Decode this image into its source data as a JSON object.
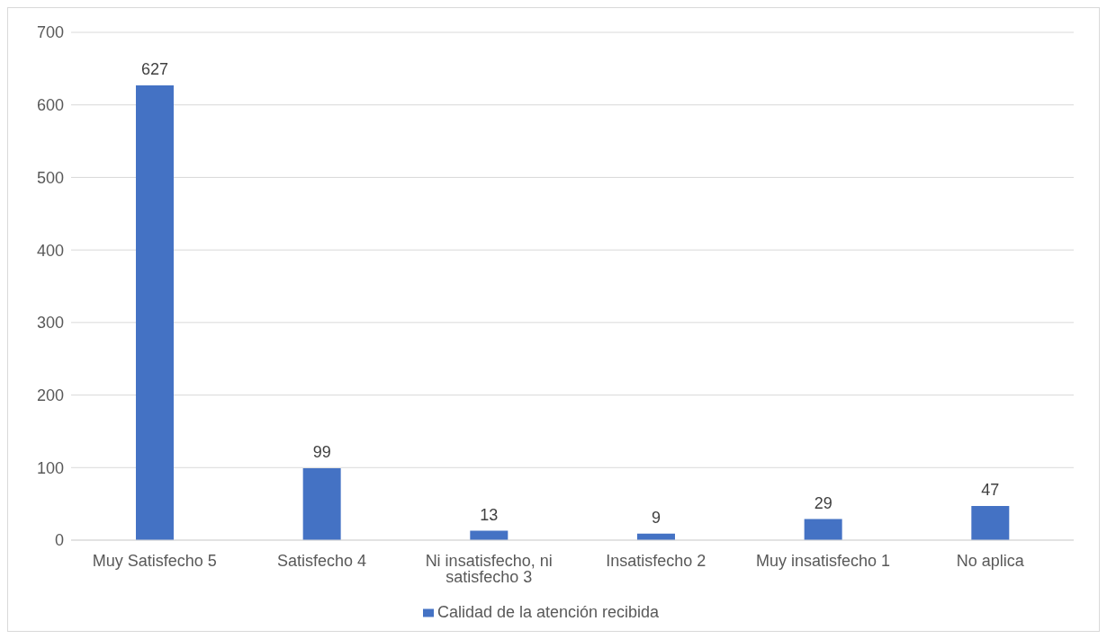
{
  "chart_data": {
    "type": "bar",
    "categories": [
      "Muy Satisfecho 5",
      "Satisfecho 4",
      "Ni insatisfecho, ni satisfecho 3",
      "Insatisfecho 2",
      "Muy insatisfecho 1",
      "No aplica"
    ],
    "series": [
      {
        "name": "Calidad de la atención recibida",
        "color": "#4472c4",
        "values": [
          627,
          99,
          13,
          9,
          29,
          47
        ]
      }
    ],
    "ylim": [
      0,
      700
    ],
    "yticks": [
      0,
      100,
      200,
      300,
      400,
      500,
      600,
      700
    ],
    "grid": "y",
    "legend": "bottom",
    "data_labels": true
  }
}
